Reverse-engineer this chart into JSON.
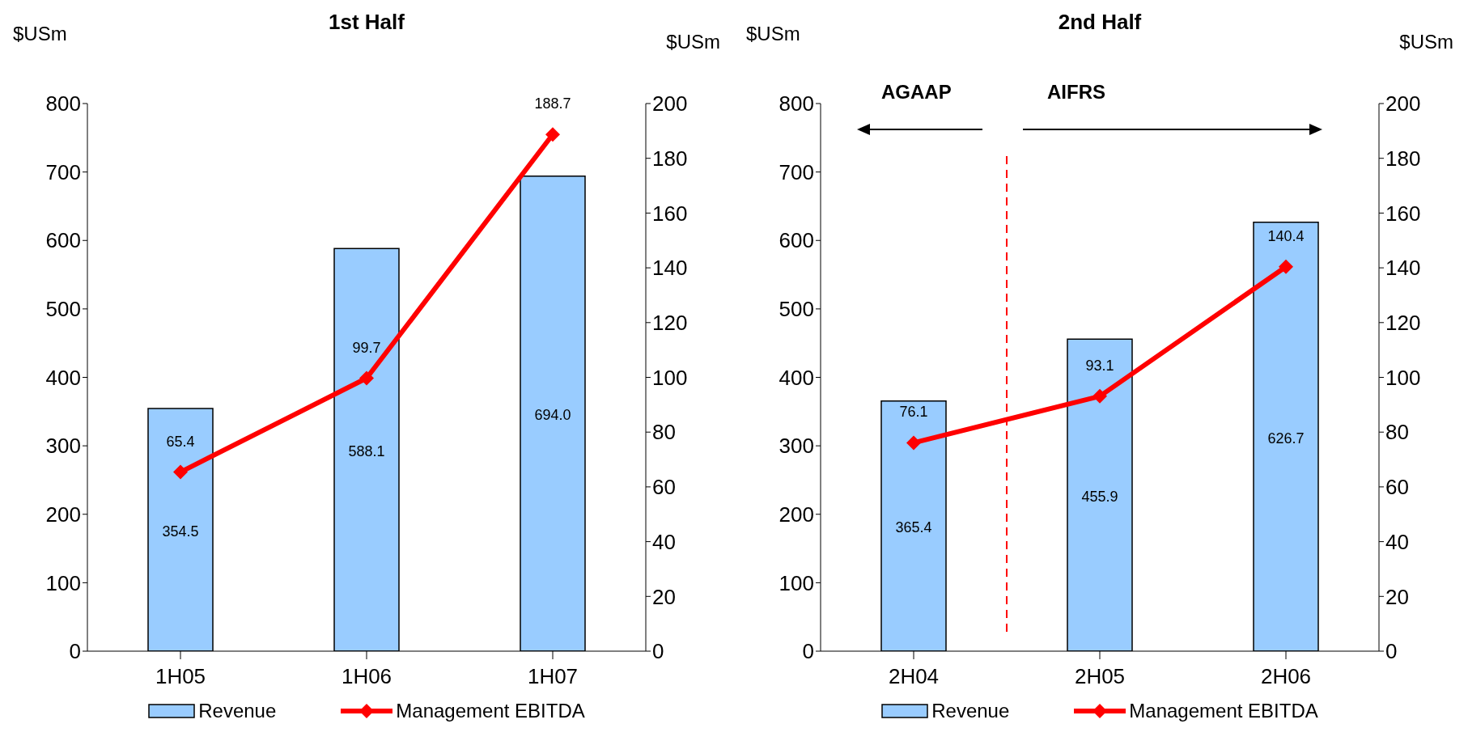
{
  "chart_data": [
    {
      "type": "bar",
      "title": "1st Half",
      "ylabel": "$USm",
      "y2label": "$USm",
      "categories": [
        "1H05",
        "1H06",
        "1H07"
      ],
      "series": [
        {
          "name": "Revenue",
          "color": "#99ccff",
          "values": [
            354.5,
            588.1,
            694.0
          ],
          "value_labels": [
            "354.5",
            "588.1",
            "694.0"
          ]
        },
        {
          "name": "Management EBITDA",
          "type": "line",
          "axis": "y2",
          "color": "#ff0000",
          "marker": "diamond",
          "values": [
            65.4,
            99.7,
            188.7
          ],
          "value_labels": [
            "65.4",
            "99.7",
            "188.7"
          ]
        }
      ],
      "ylim": [
        0,
        800
      ],
      "yticks": [
        0,
        100,
        200,
        300,
        400,
        500,
        600,
        700,
        800
      ],
      "y2lim": [
        0,
        200
      ],
      "y2ticks": [
        0,
        20,
        40,
        60,
        80,
        100,
        120,
        140,
        160,
        180,
        200
      ],
      "grid": false,
      "legend": "bottom"
    },
    {
      "type": "bar",
      "title": "2nd Half",
      "ylabel": "$USm",
      "y2label": "$USm",
      "categories": [
        "2H04",
        "2H05",
        "2H06"
      ],
      "series": [
        {
          "name": "Revenue",
          "color": "#99ccff",
          "values": [
            365.4,
            455.9,
            626.7
          ],
          "value_labels": [
            "365.4",
            "455.9",
            "626.7"
          ]
        },
        {
          "name": "Management EBITDA",
          "type": "line",
          "axis": "y2",
          "color": "#ff0000",
          "marker": "diamond",
          "values": [
            76.1,
            93.1,
            140.4
          ],
          "value_labels": [
            "76.1",
            "93.1",
            "140.4"
          ]
        }
      ],
      "ylim": [
        0,
        800
      ],
      "yticks": [
        0,
        100,
        200,
        300,
        400,
        500,
        600,
        700,
        800
      ],
      "y2lim": [
        0,
        200
      ],
      "y2ticks": [
        0,
        20,
        40,
        60,
        80,
        100,
        120,
        140,
        160,
        180,
        200
      ],
      "grid": false,
      "legend": "bottom",
      "ref_lines": [
        {
          "axis": "x",
          "color": "#ff0000",
          "line_style": "dashed"
        }
      ],
      "annotations": [
        "AGAAP",
        "AIFRS"
      ]
    }
  ]
}
